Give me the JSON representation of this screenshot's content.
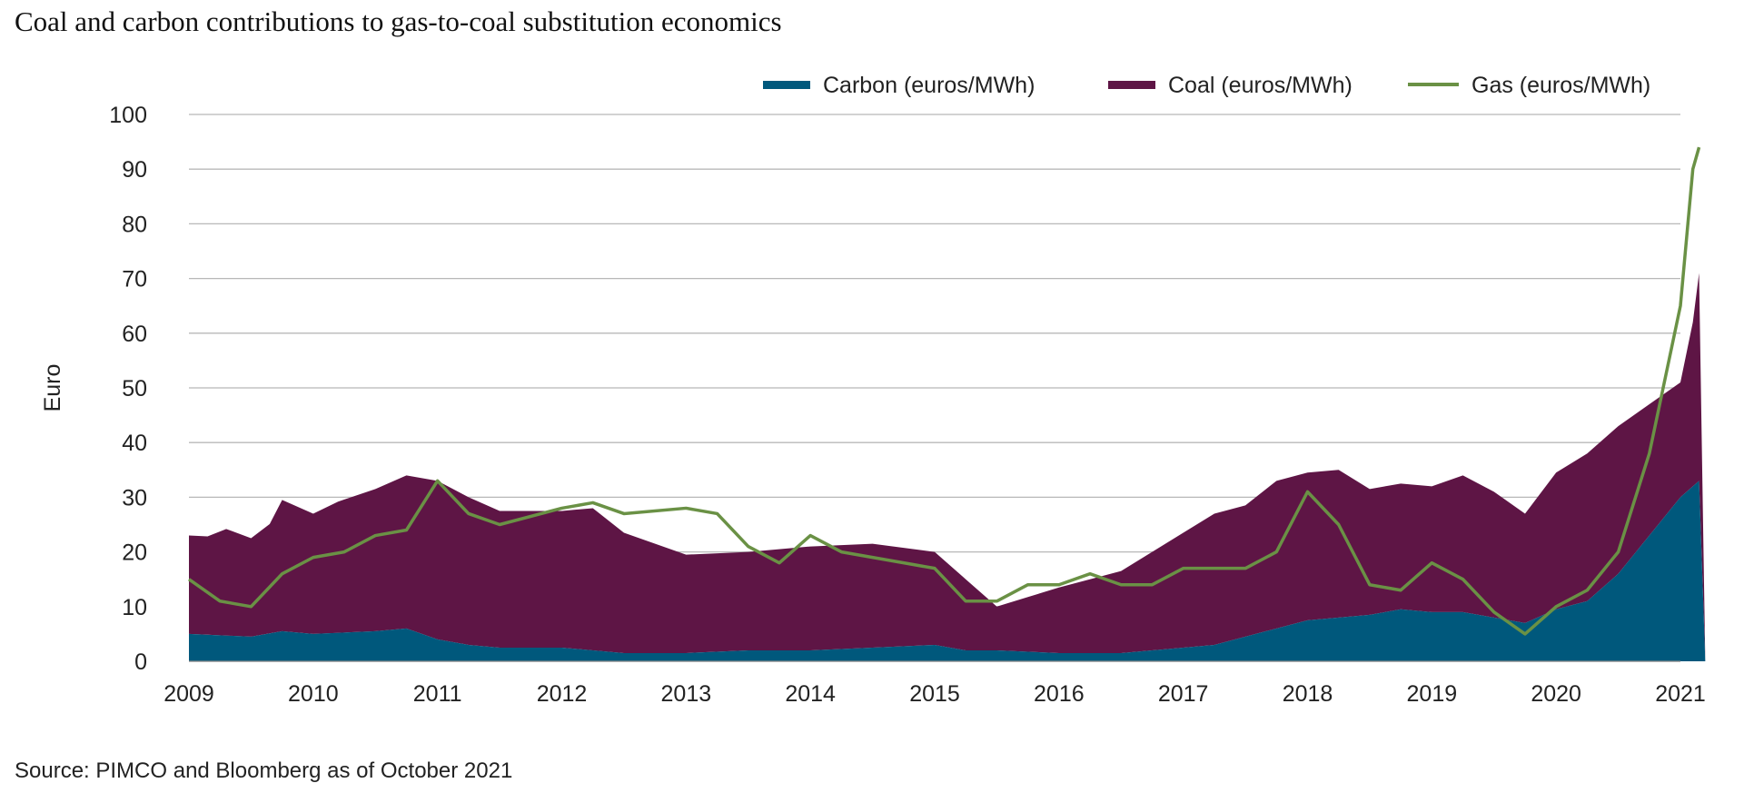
{
  "title": "Coal and carbon contributions to gas-to-coal substitution economics",
  "source": "Source: PIMCO and Bloomberg as of October 2021",
  "colors": {
    "carbon": "#00587c",
    "coal": "#5e1545",
    "gas": "#6a9145",
    "grid": "#b8b8b8"
  },
  "chart_data": {
    "type": "area",
    "title": "Coal and carbon contributions to gas-to-coal substitution economics",
    "ylabel": "Euro",
    "xlabel": "",
    "xlim": [
      2009,
      2021
    ],
    "ylim": [
      0,
      100
    ],
    "yticks": [
      0,
      10,
      20,
      30,
      40,
      50,
      60,
      70,
      80,
      90,
      100
    ],
    "xticks": [
      2009,
      2010,
      2011,
      2012,
      2013,
      2014,
      2015,
      2016,
      2017,
      2018,
      2019,
      2020,
      2021
    ],
    "grid": true,
    "legend_position": "top-right",
    "stacked": true,
    "series": [
      {
        "name": "Carbon (euros/MWh)",
        "kind": "area",
        "points": [
          [
            2009,
            5
          ],
          [
            2009.5,
            4.5
          ],
          [
            2009.75,
            5.5
          ],
          [
            2010,
            5
          ],
          [
            2010.5,
            5.5
          ],
          [
            2010.75,
            6
          ],
          [
            2011,
            4
          ],
          [
            2011.25,
            3
          ],
          [
            2011.5,
            2.5
          ],
          [
            2012,
            2.5
          ],
          [
            2012.5,
            1.5
          ],
          [
            2013,
            1.5
          ],
          [
            2013.5,
            2
          ],
          [
            2014,
            2
          ],
          [
            2014.5,
            2.5
          ],
          [
            2015,
            3
          ],
          [
            2015.25,
            2
          ],
          [
            2015.5,
            2
          ],
          [
            2016,
            1.5
          ],
          [
            2016.5,
            1.5
          ],
          [
            2017,
            2.5
          ],
          [
            2017.25,
            3
          ],
          [
            2017.5,
            4.5
          ],
          [
            2017.75,
            6
          ],
          [
            2018,
            7.5
          ],
          [
            2018.25,
            8
          ],
          [
            2018.5,
            8.5
          ],
          [
            2018.75,
            9.5
          ],
          [
            2019,
            9
          ],
          [
            2019.25,
            9
          ],
          [
            2019.5,
            8
          ],
          [
            2019.75,
            7
          ],
          [
            2020,
            9.5
          ],
          [
            2020.25,
            11
          ],
          [
            2020.5,
            16
          ],
          [
            2020.75,
            23
          ],
          [
            2021,
            30
          ],
          [
            2021.15,
            33
          ],
          [
            2021.2,
            0
          ]
        ]
      },
      {
        "name": "Coal (euros/MWh)",
        "kind": "area",
        "points": [
          [
            2009,
            18
          ],
          [
            2009.15,
            18
          ],
          [
            2009.3,
            19.5
          ],
          [
            2009.5,
            18
          ],
          [
            2009.65,
            20
          ],
          [
            2009.75,
            24
          ],
          [
            2010,
            22
          ],
          [
            2010.2,
            24
          ],
          [
            2010.5,
            26
          ],
          [
            2010.75,
            28
          ],
          [
            2011,
            29
          ],
          [
            2011.25,
            27
          ],
          [
            2011.5,
            25
          ],
          [
            2012,
            25
          ],
          [
            2012.25,
            26
          ],
          [
            2012.5,
            22
          ],
          [
            2013,
            18
          ],
          [
            2013.5,
            18
          ],
          [
            2014,
            19
          ],
          [
            2014.5,
            19
          ],
          [
            2015,
            17
          ],
          [
            2015.25,
            13
          ],
          [
            2015.5,
            8
          ],
          [
            2015.75,
            10
          ],
          [
            2016,
            12
          ],
          [
            2016.5,
            15
          ],
          [
            2017,
            21
          ],
          [
            2017.25,
            24
          ],
          [
            2017.5,
            24
          ],
          [
            2017.75,
            27
          ],
          [
            2018,
            27
          ],
          [
            2018.25,
            27
          ],
          [
            2018.5,
            23
          ],
          [
            2018.75,
            23
          ],
          [
            2019,
            23
          ],
          [
            2019.25,
            25
          ],
          [
            2019.5,
            23
          ],
          [
            2019.75,
            20
          ],
          [
            2020,
            25
          ],
          [
            2020.25,
            27
          ],
          [
            2020.5,
            27
          ],
          [
            2020.75,
            24
          ],
          [
            2021,
            21
          ],
          [
            2021.1,
            30
          ],
          [
            2021.15,
            38
          ],
          [
            2021.2,
            0
          ]
        ]
      },
      {
        "name": "Gas (euros/MWh)",
        "kind": "line",
        "points": [
          [
            2009,
            15
          ],
          [
            2009.25,
            11
          ],
          [
            2009.5,
            10
          ],
          [
            2009.75,
            16
          ],
          [
            2010,
            19
          ],
          [
            2010.25,
            20
          ],
          [
            2010.5,
            23
          ],
          [
            2010.75,
            24
          ],
          [
            2011,
            33
          ],
          [
            2011.25,
            27
          ],
          [
            2011.5,
            25
          ],
          [
            2012,
            28
          ],
          [
            2012.25,
            29
          ],
          [
            2012.5,
            27
          ],
          [
            2013,
            28
          ],
          [
            2013.25,
            27
          ],
          [
            2013.5,
            21
          ],
          [
            2013.75,
            18
          ],
          [
            2014,
            23
          ],
          [
            2014.25,
            20
          ],
          [
            2014.5,
            19
          ],
          [
            2014.75,
            18
          ],
          [
            2015,
            17
          ],
          [
            2015.25,
            11
          ],
          [
            2015.5,
            11
          ],
          [
            2015.75,
            14
          ],
          [
            2016,
            14
          ],
          [
            2016.25,
            16
          ],
          [
            2016.5,
            14
          ],
          [
            2016.75,
            14
          ],
          [
            2017,
            17
          ],
          [
            2017.25,
            17
          ],
          [
            2017.5,
            17
          ],
          [
            2017.75,
            20
          ],
          [
            2018,
            31
          ],
          [
            2018.25,
            25
          ],
          [
            2018.5,
            14
          ],
          [
            2018.75,
            13
          ],
          [
            2019,
            18
          ],
          [
            2019.25,
            15
          ],
          [
            2019.5,
            9
          ],
          [
            2019.75,
            5
          ],
          [
            2020,
            10
          ],
          [
            2020.25,
            13
          ],
          [
            2020.5,
            20
          ],
          [
            2020.75,
            38
          ],
          [
            2021,
            65
          ],
          [
            2021.1,
            90
          ],
          [
            2021.15,
            94
          ]
        ]
      }
    ]
  }
}
